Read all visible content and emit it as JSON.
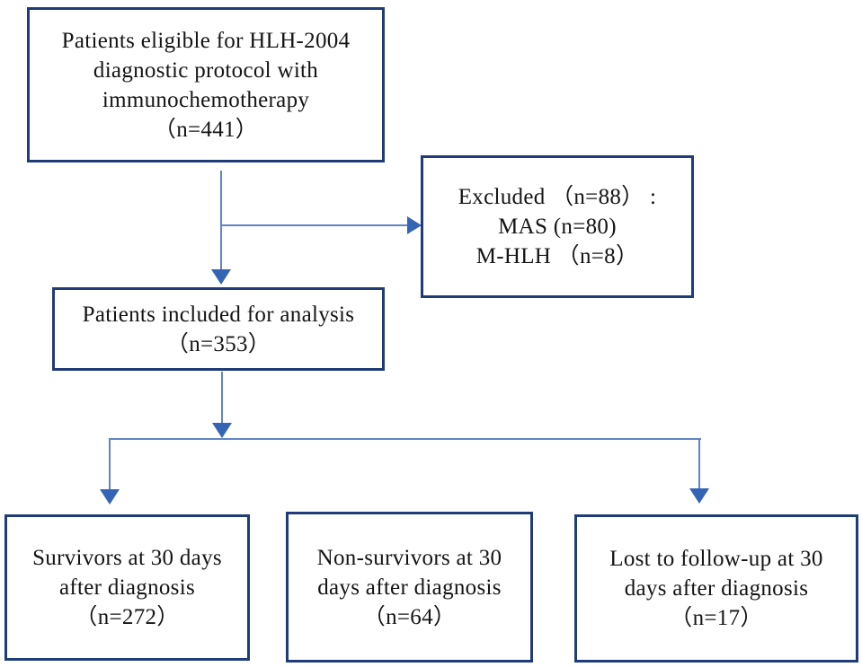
{
  "figure": {
    "type": "flowchart",
    "boxes": {
      "eligible": {
        "lines": [
          "Patients eligible for HLH-2004",
          "diagnostic protocol with",
          "immunochemotherapy",
          "（n=441）"
        ]
      },
      "excluded": {
        "lines": [
          "Excluded （n=88） :",
          "MAS (n=80)",
          "M-HLH （n=8）"
        ]
      },
      "included": {
        "lines": [
          "Patients included for analysis",
          "（n=353）"
        ]
      },
      "survivors": {
        "lines": [
          "Survivors at 30 days",
          "after diagnosis",
          "（n=272）"
        ]
      },
      "nonsurvivors": {
        "lines": [
          "Non-survivors at 30",
          "days after diagnosis",
          "（n=64）"
        ]
      },
      "lost": {
        "lines": [
          "Lost to follow-up at 30",
          "days after diagnosis",
          "（n=17）"
        ]
      }
    },
    "edges": [
      {
        "from": "eligible",
        "to": "included",
        "style": "arrow-down"
      },
      {
        "from": "eligible",
        "to": "excluded",
        "style": "arrow-right-branch"
      },
      {
        "from": "included",
        "to": "survivors",
        "style": "arrow-down"
      },
      {
        "from": "included",
        "to": "nonsurvivors",
        "style": "split-line"
      },
      {
        "from": "included",
        "to": "lost",
        "style": "arrow-down"
      }
    ],
    "colors": {
      "box_border": "#1f3c78",
      "connector_line": "#5f85c7",
      "arrowhead": "#3564b5",
      "text": "#141414",
      "background": "#ffffff"
    }
  }
}
